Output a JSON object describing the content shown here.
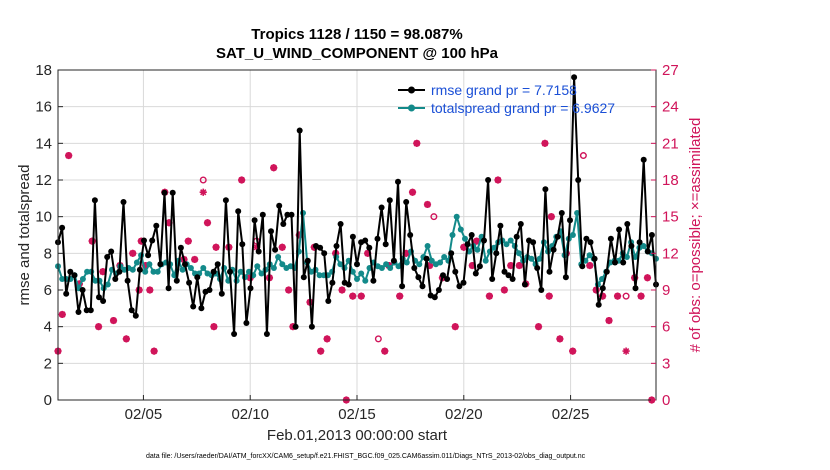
{
  "chart_data": {
    "type": "line",
    "title_line1": "Tropics 1128 / 1150 = 98.087%",
    "title_line2": "SAT_U_WIND_COMPONENT @ 100 hPa",
    "xlabel": "Feb.01,2013 00:00:00 start",
    "ylabel_left": "rmse and totalspread",
    "ylabel_right": "# of obs: o=possible; ×=assimilated",
    "footnote": "data file: /Users/raeder/DAI/ATM_forcXX/CAM6_setup/f.e21.FHIST_BGC.f09_025.CAM6assim.011/Diags_NTrS_2013-02/obs_diag_output.nc",
    "xlim": [
      1,
      29
    ],
    "ylim_left": [
      0,
      18
    ],
    "ylim_right": [
      0,
      27
    ],
    "x_tick_values": [
      5,
      10,
      15,
      20,
      25
    ],
    "x_tick_labels": [
      "02/05",
      "02/10",
      "02/15",
      "02/20",
      "02/25"
    ],
    "y_left_ticks": [
      "0",
      "2",
      "4",
      "6",
      "8",
      "10",
      "12",
      "14",
      "16",
      "18"
    ],
    "y_right_ticks": [
      "0",
      "3",
      "6",
      "9",
      "12",
      "15",
      "18",
      "21",
      "24",
      "27"
    ],
    "colors": {
      "rmse": "#000000",
      "spread": "#138a8a",
      "obs": "#d0145a",
      "legend_text": "#1a4fd6"
    },
    "series": [
      {
        "name": "rmse",
        "legend": "rmse grand pr = 7.7158",
        "color": "#000000",
        "values": [
          8.6,
          9.4,
          5.8,
          7.0,
          6.8,
          4.8,
          6.0,
          4.9,
          4.9,
          10.9,
          5.6,
          5.4,
          7.8,
          8.1,
          6.6,
          7.0,
          10.8,
          6.5,
          4.9,
          4.6,
          7.1,
          8.7,
          7.9,
          8.7,
          9.5,
          7.4,
          11.3,
          6.1,
          11.3,
          6.5,
          8.3,
          7.4,
          6.4,
          5.1,
          6.7,
          5.0,
          5.9,
          6.0,
          7.0,
          7.4,
          5.8,
          10.9,
          7.0,
          3.6,
          10.3,
          8.5,
          4.2,
          6.1,
          9.8,
          8.1,
          10.1,
          3.6,
          9.2,
          8.2,
          10.6,
          9.6,
          10.1,
          10.1,
          4.0,
          14.7,
          6.7,
          7.6,
          4.0,
          8.4,
          8.3,
          8.0,
          5.4,
          6.4,
          8.4,
          9.6,
          6.4,
          6.3,
          8.9,
          7.4,
          8.6,
          8.7,
          8.3,
          6.5,
          8.8,
          10.5,
          8.5,
          10.9,
          7.6,
          11.9,
          6.2,
          10.8,
          9.0,
          7.2,
          6.7,
          6.2,
          7.7,
          5.7,
          5.6,
          6.0,
          6.8,
          6.6,
          8.0,
          7.0,
          6.2,
          6.4,
          8.5,
          9.0,
          6.9,
          7.3,
          8.7,
          12.0,
          6.6,
          8.0,
          9.5,
          7.0,
          6.8,
          6.6,
          8.9,
          9.6,
          6.3,
          8.7,
          8.6,
          7.2,
          6.0,
          11.5,
          7.0,
          8.2,
          8.9,
          10.2,
          6.7,
          9.8,
          17.6,
          12.0,
          7.3,
          8.8,
          8.6,
          7.7,
          5.2,
          6.1,
          7.0,
          8.8,
          7.5,
          9.3,
          7.5,
          9.6,
          8.4,
          6.1,
          8.6,
          13.1,
          8.1,
          9.0,
          6.3
        ]
      },
      {
        "name": "totalspread",
        "legend": "totalspread grand pr = 6.9627",
        "color": "#138a8a",
        "values": [
          7.3,
          6.6,
          6.6,
          6.6,
          6.8,
          6.1,
          6.6,
          7.0,
          7.0,
          6.5,
          6.5,
          6.1,
          6.3,
          7.1,
          6.9,
          7.3,
          7.1,
          7.2,
          7.1,
          7.5,
          7.9,
          7.0,
          7.4,
          7.0,
          7.0,
          7.4,
          7.5,
          7.4,
          6.8,
          7.6,
          7.1,
          7.4,
          7.2,
          6.9,
          6.9,
          7.2,
          6.9,
          6.8,
          6.9,
          6.6,
          7.2,
          6.5,
          7.1,
          6.5,
          7.0,
          6.7,
          7.0,
          6.8,
          7.3,
          6.9,
          7.1,
          7.4,
          7.2,
          7.8,
          7.4,
          7.2,
          7.3,
          7.2,
          8.1,
          10.2,
          7.5,
          7.0,
          7.1,
          6.8,
          6.8,
          6.8,
          7.0,
          7.8,
          7.4,
          7.2,
          7.6,
          7.0,
          6.6,
          6.9,
          6.5,
          7.2,
          7.5,
          7.3,
          7.2,
          7.4,
          7.2,
          7.5,
          7.3,
          7.7,
          7.5,
          8.1,
          7.6,
          7.4,
          7.8,
          8.4,
          7.6,
          7.4,
          7.5,
          7.8,
          7.6,
          9.0,
          10.0,
          9.3,
          8.8,
          8.1,
          8.4,
          8.2,
          8.9,
          7.6,
          8.1,
          8.3,
          8.6,
          8.7,
          8.5,
          8.7,
          8.4,
          8.0,
          7.6,
          7.8,
          7.7,
          7.4,
          7.7,
          8.6,
          8.1,
          8.4,
          8.9,
          9.2,
          7.9,
          8.8,
          9.0,
          10.2,
          7.4,
          7.6,
          7.9,
          7.7,
          6.3,
          6.6,
          7.0,
          7.5,
          7.6,
          7.6,
          8.0,
          7.8,
          8.6,
          7.8,
          8.3,
          8.4,
          8.1,
          8.0,
          7.7
        ]
      }
    ],
    "obs_possible": [
      [
        1,
        4
      ],
      [
        1.2,
        7
      ],
      [
        1.5,
        20
      ],
      [
        2,
        9.5
      ],
      [
        2.6,
        13
      ],
      [
        2.9,
        6
      ],
      [
        3.1,
        10.5
      ],
      [
        3.6,
        6.5
      ],
      [
        3.9,
        11
      ],
      [
        4.2,
        5
      ],
      [
        4.5,
        12
      ],
      [
        4.8,
        9
      ],
      [
        4.9,
        13
      ],
      [
        5.1,
        11
      ],
      [
        5.3,
        9
      ],
      [
        5.5,
        4
      ],
      [
        6.0,
        17
      ],
      [
        6.2,
        14.5
      ],
      [
        6.9,
        11.5
      ],
      [
        7.1,
        13
      ],
      [
        7.4,
        11.5
      ],
      [
        7.8,
        18
      ],
      [
        8.0,
        14.5
      ],
      [
        8.3,
        6
      ],
      [
        8.4,
        12.5
      ],
      [
        9.0,
        12.5
      ],
      [
        9.6,
        18
      ],
      [
        10.0,
        10
      ],
      [
        10.3,
        13
      ],
      [
        10.9,
        10
      ],
      [
        11.1,
        19
      ],
      [
        11.5,
        12.5
      ],
      [
        11.8,
        9
      ],
      [
        12.0,
        6
      ],
      [
        12.3,
        13.5
      ],
      [
        12.8,
        8
      ],
      [
        13.0,
        12.5
      ],
      [
        13.3,
        4
      ],
      [
        13.6,
        5
      ],
      [
        14.0,
        12
      ],
      [
        14.3,
        9
      ],
      [
        14.5,
        0
      ],
      [
        14.8,
        8.5
      ],
      [
        15.2,
        8.5
      ],
      [
        15.5,
        12
      ],
      [
        16.0,
        5
      ],
      [
        16.3,
        4
      ],
      [
        16.5,
        11
      ],
      [
        17.0,
        8.5
      ],
      [
        17.3,
        12
      ],
      [
        17.6,
        17
      ],
      [
        17.8,
        21
      ],
      [
        18.3,
        16
      ],
      [
        18.4,
        11
      ],
      [
        18.6,
        15
      ],
      [
        19.0,
        10
      ],
      [
        19.6,
        6
      ],
      [
        20.0,
        12.5
      ],
      [
        20.4,
        11
      ],
      [
        20.6,
        13
      ],
      [
        21.2,
        8.5
      ],
      [
        21.6,
        18
      ],
      [
        21.9,
        9
      ],
      [
        22.2,
        11
      ],
      [
        22.6,
        11
      ],
      [
        22.9,
        9.5
      ],
      [
        23.5,
        6
      ],
      [
        23.8,
        21
      ],
      [
        24.0,
        8.5
      ],
      [
        24.1,
        15
      ],
      [
        24.5,
        5
      ],
      [
        24.8,
        12
      ],
      [
        25.1,
        4
      ],
      [
        25.6,
        20
      ],
      [
        25.9,
        11
      ],
      [
        26.2,
        9
      ],
      [
        26.5,
        8.5
      ],
      [
        26.8,
        6.5
      ],
      [
        27.2,
        8.5
      ],
      [
        27.6,
        8.5
      ],
      [
        28.0,
        10
      ],
      [
        28.3,
        8.5
      ],
      [
        28.6,
        10
      ],
      [
        28.8,
        0
      ]
    ],
    "obs_assimilated": [
      [
        1,
        4
      ],
      [
        1.2,
        7
      ],
      [
        1.5,
        20
      ],
      [
        2,
        9.5
      ],
      [
        2.6,
        13
      ],
      [
        2.9,
        6
      ],
      [
        3.1,
        10.5
      ],
      [
        3.6,
        6.5
      ],
      [
        3.9,
        11
      ],
      [
        4.2,
        5
      ],
      [
        4.5,
        12
      ],
      [
        4.8,
        9
      ],
      [
        4.9,
        13
      ],
      [
        5.1,
        11
      ],
      [
        5.3,
        9
      ],
      [
        5.5,
        4
      ],
      [
        6.0,
        17
      ],
      [
        6.2,
        14.5
      ],
      [
        6.9,
        11.5
      ],
      [
        7.1,
        13
      ],
      [
        7.4,
        11.5
      ],
      [
        7.8,
        17
      ],
      [
        8.0,
        14.5
      ],
      [
        8.3,
        6
      ],
      [
        8.4,
        12.5
      ],
      [
        9.0,
        12.5
      ],
      [
        9.6,
        18
      ],
      [
        10.0,
        10
      ],
      [
        10.3,
        12.5
      ],
      [
        10.9,
        10
      ],
      [
        11.1,
        19
      ],
      [
        11.5,
        12.5
      ],
      [
        11.8,
        9
      ],
      [
        12.0,
        6
      ],
      [
        12.3,
        13.5
      ],
      [
        12.8,
        8
      ],
      [
        13.0,
        12.5
      ],
      [
        13.3,
        4
      ],
      [
        13.6,
        5
      ],
      [
        14.0,
        12
      ],
      [
        14.3,
        9
      ],
      [
        14.5,
        0
      ],
      [
        14.8,
        8.5
      ],
      [
        15.2,
        8.5
      ],
      [
        15.5,
        12
      ],
      [
        16.3,
        4
      ],
      [
        16.5,
        11
      ],
      [
        17.0,
        8.5
      ],
      [
        17.3,
        12
      ],
      [
        17.6,
        17
      ],
      [
        17.8,
        21
      ],
      [
        18.3,
        16
      ],
      [
        18.4,
        11
      ],
      [
        19.0,
        10
      ],
      [
        19.6,
        6
      ],
      [
        20.0,
        12.5
      ],
      [
        20.4,
        11
      ],
      [
        20.6,
        13
      ],
      [
        21.2,
        8.5
      ],
      [
        21.6,
        18
      ],
      [
        21.9,
        9
      ],
      [
        22.2,
        11
      ],
      [
        22.6,
        11
      ],
      [
        22.9,
        9.5
      ],
      [
        23.5,
        6
      ],
      [
        23.8,
        21
      ],
      [
        24.0,
        8.5
      ],
      [
        24.1,
        15
      ],
      [
        24.5,
        5
      ],
      [
        24.8,
        12
      ],
      [
        25.1,
        4
      ],
      [
        25.9,
        11
      ],
      [
        26.2,
        9
      ],
      [
        26.5,
        8.5
      ],
      [
        26.8,
        6.5
      ],
      [
        27.2,
        8.5
      ],
      [
        27.6,
        4
      ],
      [
        28.0,
        10
      ],
      [
        28.3,
        8.5
      ],
      [
        28.6,
        10
      ],
      [
        28.8,
        0
      ]
    ]
  }
}
